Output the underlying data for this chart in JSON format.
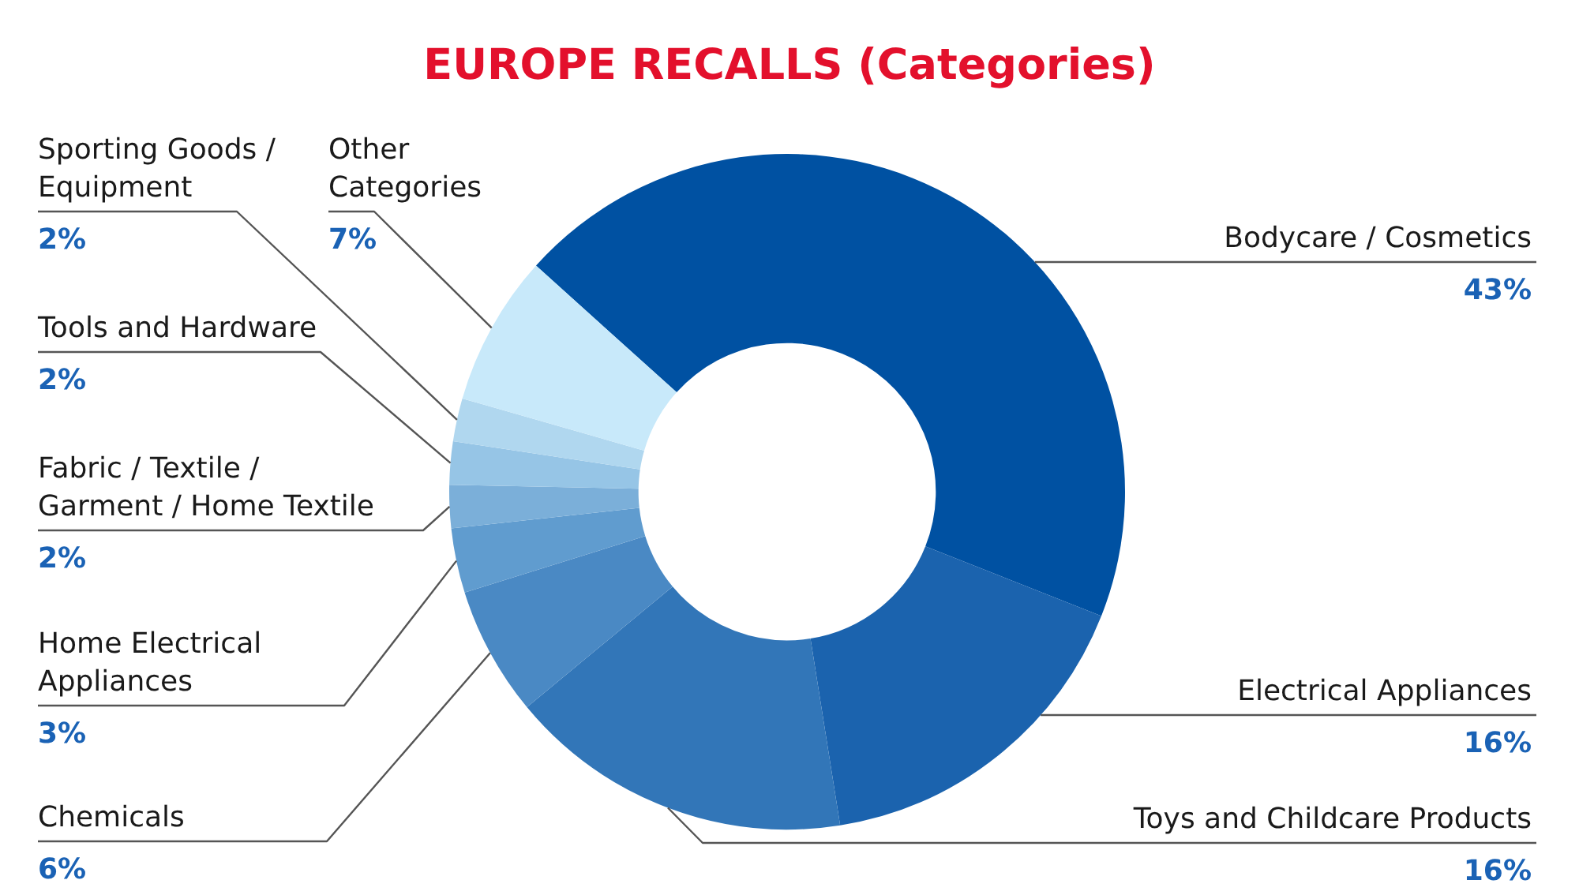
{
  "chart_data": {
    "type": "donut",
    "title": "EUROPE RECALLS (Categories)",
    "categories": [
      "Bodycare / Cosmetics",
      "Electrical Appliances",
      "Toys and Childcare Products",
      "Chemicals",
      "Home Electrical Appliances",
      "Fabric / Textile / Garment / Home Textile",
      "Tools and Hardware",
      "Sporting Goods / Equipment",
      "Other Categories"
    ],
    "values": [
      43,
      16,
      16,
      6,
      3,
      2,
      2,
      2,
      7
    ],
    "value_labels": [
      "43%",
      "16%",
      "16%",
      "6%",
      "3%",
      "2%",
      "2%",
      "2%",
      "7%"
    ],
    "colors": [
      "#0051a2",
      "#1b63ae",
      "#3276b8",
      "#4a89c4",
      "#609ccf",
      "#7bafd9",
      "#96c5e6",
      "#b0d7ef",
      "#c8e9fa"
    ]
  }
}
